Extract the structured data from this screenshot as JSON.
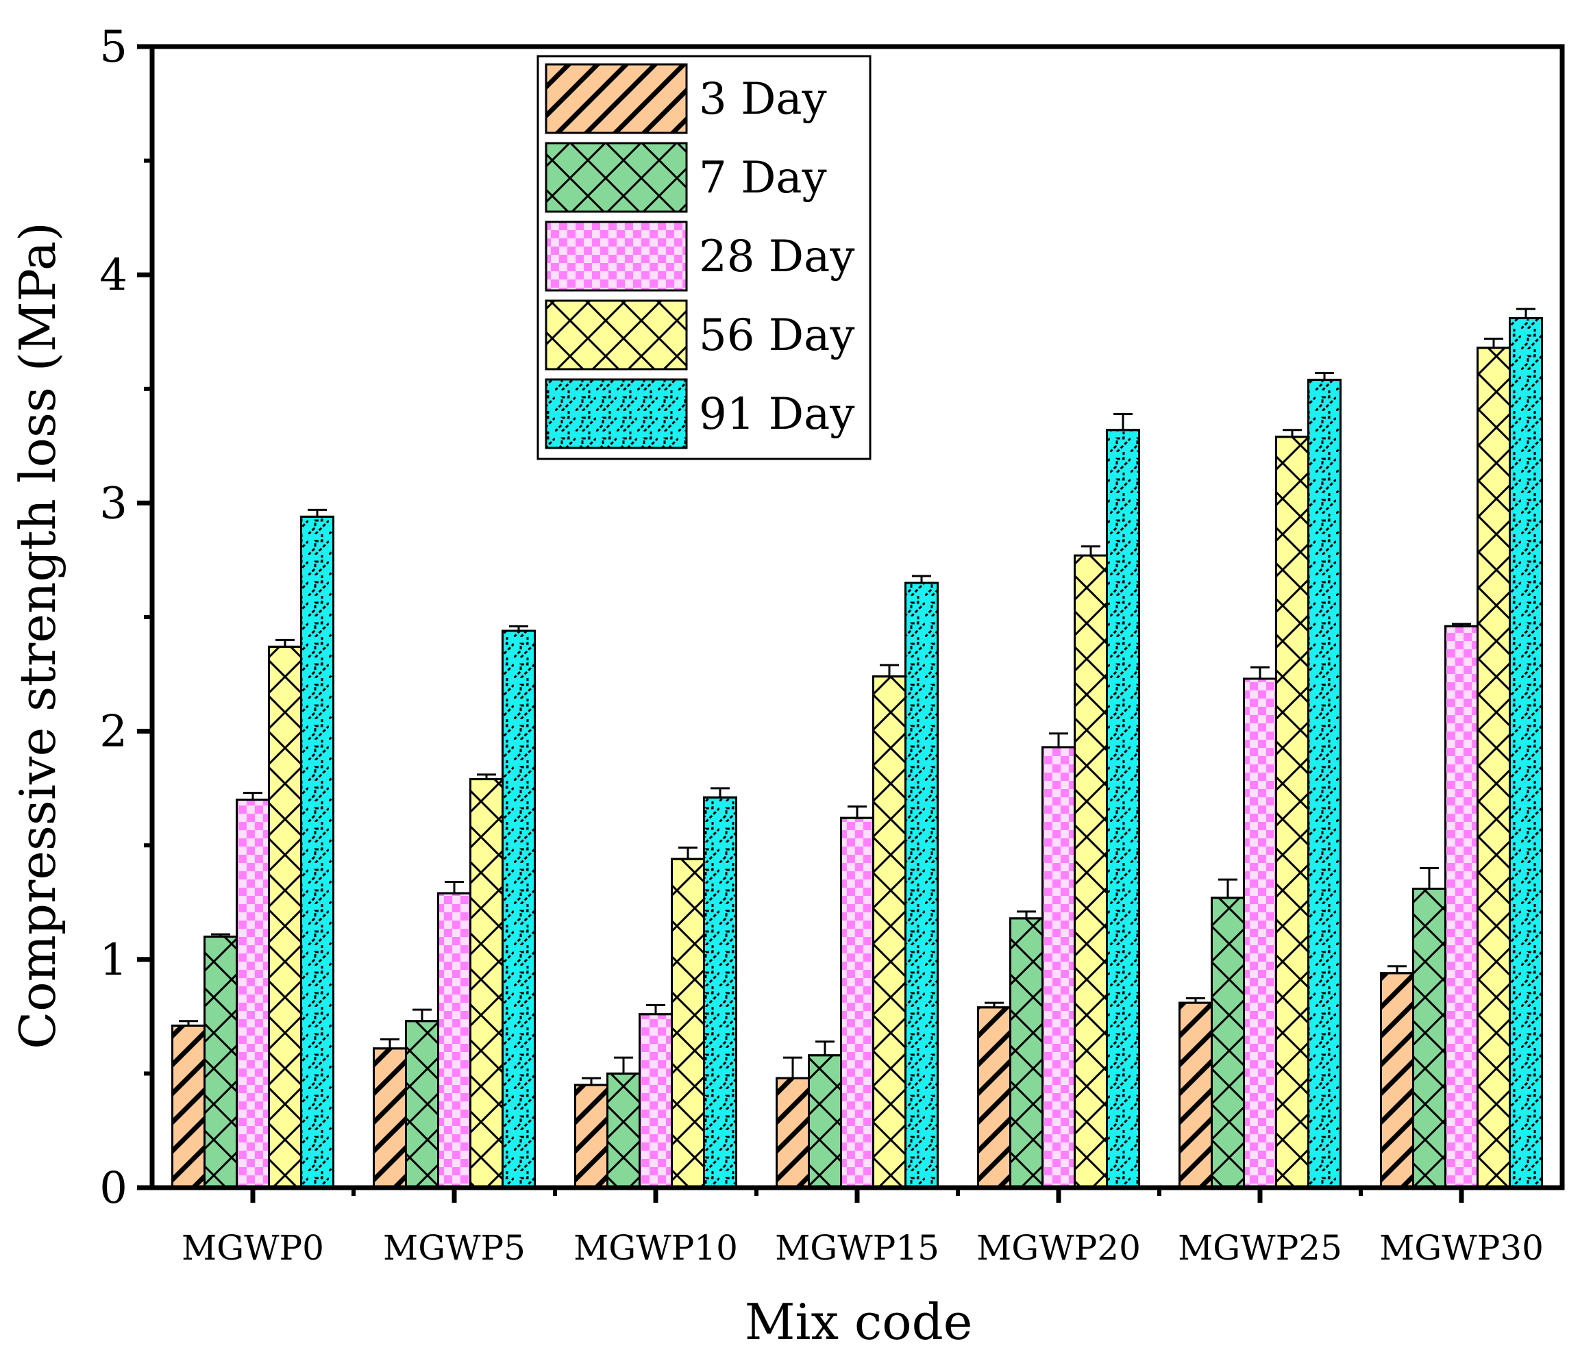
{
  "chart_data": {
    "type": "bar",
    "title": "",
    "xlabel": "Mix code",
    "ylabel": "Compressive strength loss (MPa)",
    "ylim": [
      0,
      5
    ],
    "yticks": [
      "0",
      "1",
      "2",
      "3",
      "4",
      "5"
    ],
    "categories": [
      "MGWP0",
      "MGWP5",
      "MGWP10",
      "MGWP15",
      "MGWP20",
      "MGWP25",
      "MGWP30"
    ],
    "legend_position": "top-center",
    "series": [
      {
        "name": "3 Day",
        "color": "#FDC997",
        "pattern": "diagonal-hatch",
        "values": [
          0.71,
          0.61,
          0.45,
          0.48,
          0.79,
          0.81,
          0.94
        ],
        "errors": [
          0.02,
          0.04,
          0.03,
          0.09,
          0.02,
          0.02,
          0.03
        ]
      },
      {
        "name": "7 Day",
        "color": "#86D899",
        "pattern": "cross-hatch",
        "values": [
          1.1,
          0.73,
          0.5,
          0.58,
          1.18,
          1.27,
          1.31
        ],
        "errors": [
          0.01,
          0.05,
          0.07,
          0.06,
          0.03,
          0.08,
          0.09
        ]
      },
      {
        "name": "28 Day",
        "color": "#FF80FF",
        "pattern": "checker",
        "values": [
          1.7,
          1.29,
          0.76,
          1.62,
          1.93,
          2.23,
          2.46
        ],
        "errors": [
          0.03,
          0.05,
          0.04,
          0.05,
          0.06,
          0.05,
          0.01
        ]
      },
      {
        "name": "56 Day",
        "color": "#FFFF99",
        "pattern": "cross-hatch",
        "values": [
          2.37,
          1.79,
          1.44,
          2.24,
          2.77,
          3.29,
          3.68
        ],
        "errors": [
          0.03,
          0.02,
          0.05,
          0.05,
          0.04,
          0.03,
          0.04
        ]
      },
      {
        "name": "91 Day",
        "color": "#1CF0F0",
        "pattern": "zigzag",
        "values": [
          2.94,
          2.44,
          1.71,
          2.65,
          3.32,
          3.54,
          3.81
        ],
        "errors": [
          0.03,
          0.02,
          0.04,
          0.03,
          0.07,
          0.03,
          0.04
        ]
      }
    ]
  }
}
